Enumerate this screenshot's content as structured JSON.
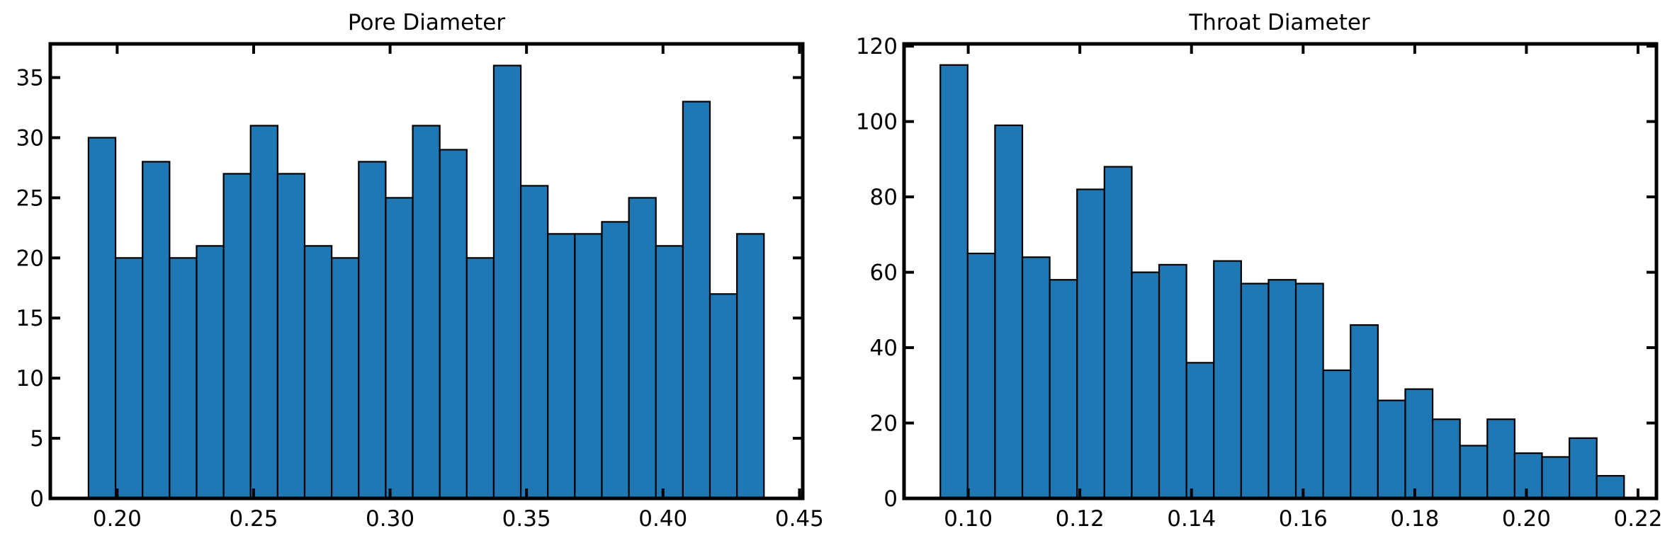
{
  "colors": {
    "bar_fill": "#1f77b4",
    "bar_edge": "#000000",
    "axes": "#000000",
    "background": "#ffffff"
  },
  "chart_data": [
    {
      "type": "bar",
      "title": "Pore Diameter",
      "xlabel": "",
      "ylabel": "",
      "xlim": [
        0.1755,
        0.4512
      ],
      "ylim": [
        0,
        37.8
      ],
      "xticks": [
        0.2,
        0.25,
        0.3,
        0.35,
        0.4,
        0.45
      ],
      "xtick_labels": [
        "0.20",
        "0.25",
        "0.30",
        "0.35",
        "0.40",
        "0.45"
      ],
      "yticks": [
        0,
        5,
        10,
        15,
        20,
        25,
        30,
        35
      ],
      "ytick_labels": [
        "0",
        "5",
        "10",
        "15",
        "20",
        "25",
        "30",
        "35"
      ],
      "bin_edges": [
        0.1895,
        0.1994,
        0.2093,
        0.2192,
        0.2291,
        0.239,
        0.2489,
        0.2588,
        0.2687,
        0.2786,
        0.2885,
        0.2984,
        0.3083,
        0.3182,
        0.3281,
        0.338,
        0.3479,
        0.3578,
        0.3677,
        0.3776,
        0.3875,
        0.3974,
        0.4073,
        0.4172,
        0.4271,
        0.437
      ],
      "values": [
        30,
        20,
        28,
        20,
        21,
        27,
        31,
        27,
        21,
        20,
        28,
        25,
        31,
        29,
        20,
        36,
        26,
        22,
        22,
        23,
        25,
        21,
        33,
        17,
        22
      ],
      "grid": false
    },
    {
      "type": "bar",
      "title": "Throat Diameter",
      "xlabel": "",
      "ylabel": "",
      "xlim": [
        0.0885,
        0.2233
      ],
      "ylim": [
        0,
        120.6
      ],
      "xticks": [
        0.1,
        0.12,
        0.14,
        0.16,
        0.18,
        0.2,
        0.22
      ],
      "xtick_labels": [
        "0.10",
        "0.12",
        "0.14",
        "0.16",
        "0.18",
        "0.20",
        "0.22"
      ],
      "yticks": [
        0,
        20,
        40,
        60,
        80,
        100,
        120
      ],
      "ytick_labels": [
        "0",
        "20",
        "40",
        "60",
        "80",
        "100",
        "120"
      ],
      "bin_edges": [
        0.095,
        0.0999,
        0.1048,
        0.1097,
        0.1146,
        0.1195,
        0.1244,
        0.1293,
        0.1342,
        0.1391,
        0.144,
        0.1489,
        0.1538,
        0.1587,
        0.1636,
        0.1685,
        0.1734,
        0.1783,
        0.1832,
        0.1881,
        0.193,
        0.1979,
        0.2028,
        0.2077,
        0.2126,
        0.2175
      ],
      "values": [
        115,
        65,
        99,
        64,
        58,
        82,
        88,
        60,
        62,
        36,
        63,
        57,
        58,
        57,
        34,
        46,
        26,
        29,
        21,
        14,
        21,
        12,
        11,
        16,
        6
      ],
      "grid": false
    }
  ]
}
